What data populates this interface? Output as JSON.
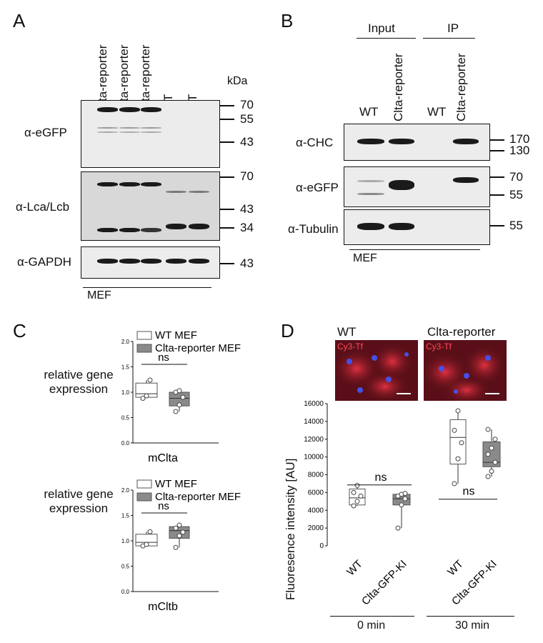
{
  "panels": {
    "A": "A",
    "B": "B",
    "C": "C",
    "D": "D"
  },
  "panelA": {
    "lanes": [
      "Clta-reporter",
      "Clta-reporter",
      "Clta-reporter",
      "WT",
      "WT"
    ],
    "kda": "kDa",
    "blots": [
      {
        "label": "α-eGFP",
        "markers": [
          "70",
          "55",
          "43"
        ]
      },
      {
        "label": "α-Lca/Lcb",
        "markers": [
          "70",
          "43",
          "34"
        ]
      },
      {
        "label": "α-GAPDH",
        "markers": [
          "43"
        ]
      }
    ],
    "cell": "MEF"
  },
  "panelB": {
    "groups": [
      "Input",
      "IP"
    ],
    "lanes": [
      "WT",
      "Clta-reporter",
      "WT",
      "Clta-reporter"
    ],
    "blots": [
      {
        "label": "α-CHC",
        "markers": [
          "170",
          "130"
        ]
      },
      {
        "label": "α-eGFP",
        "markers": [
          "70",
          "55"
        ]
      },
      {
        "label": "α-Tubulin",
        "markers": [
          "55"
        ]
      }
    ],
    "cell": "MEF"
  },
  "chart_data": [
    {
      "type": "box",
      "ylabel": "relative gene expression",
      "xlabel": "mClta",
      "ylim": [
        0,
        2.0
      ],
      "yticks": [
        "0.0",
        "0.5",
        "1.0",
        "1.5",
        "2.0"
      ],
      "legend": [
        "WT MEF",
        "Clta-reporter MEF"
      ],
      "significance": "ns",
      "series": [
        {
          "name": "WT MEF",
          "min": 0.88,
          "q1": 0.9,
          "median": 0.97,
          "q3": 1.18,
          "max": 1.24,
          "points": [
            0.88,
            0.93,
            1.24
          ]
        },
        {
          "name": "Clta-reporter MEF",
          "min": 0.62,
          "q1": 0.73,
          "median": 0.88,
          "q3": 1.0,
          "max": 1.03,
          "points": [
            0.62,
            0.75,
            0.9,
            1.0,
            1.03
          ]
        }
      ]
    },
    {
      "type": "box",
      "ylabel": "relative gene expression",
      "xlabel": "mCltb",
      "ylim": [
        0,
        2.0
      ],
      "yticks": [
        "0.0",
        "0.5",
        "1.0",
        "1.5",
        "2.0"
      ],
      "legend": [
        "WT MEF",
        "Clta-reporter MEF"
      ],
      "significance": "ns",
      "series": [
        {
          "name": "WT MEF",
          "min": 0.9,
          "q1": 0.9,
          "median": 0.97,
          "q3": 1.13,
          "max": 1.18,
          "points": [
            0.9,
            0.93,
            1.18
          ]
        },
        {
          "name": "Clta-reporter MEF",
          "min": 0.87,
          "q1": 1.05,
          "median": 1.2,
          "q3": 1.28,
          "max": 1.31,
          "points": [
            0.87,
            1.1,
            1.17,
            1.25,
            1.31
          ]
        }
      ]
    },
    {
      "type": "box",
      "ylabel": "Fluoresence intensity [AU]",
      "ylim": [
        0,
        16000
      ],
      "yticks": [
        "0",
        "2000",
        "4000",
        "6000",
        "8000",
        "10000",
        "12000",
        "14000",
        "16000"
      ],
      "categories": [
        "WT",
        "Clta-GFP-KI",
        "WT",
        "Clta-GFP-KI"
      ],
      "groups": [
        "0 min",
        "30 min"
      ],
      "significance": [
        "ns",
        "ns"
      ],
      "images": [
        {
          "title": "WT",
          "stain": "Cy3-Tf"
        },
        {
          "title": "Clta-reporter",
          "stain": "Cy3-Tf"
        }
      ],
      "series": [
        {
          "name": "WT 0 min",
          "min": 4500,
          "q1": 4600,
          "median": 5400,
          "q3": 6400,
          "max": 6800,
          "points": [
            4500,
            5000,
            5600,
            6000,
            6800
          ]
        },
        {
          "name": "Clta-GFP-KI 0 min",
          "min": 2000,
          "q1": 4600,
          "median": 5300,
          "q3": 5800,
          "max": 5900,
          "points": [
            2000,
            4600,
            5300,
            5600,
            5800,
            5900
          ]
        },
        {
          "name": "WT 30 min",
          "min": 7000,
          "q1": 9200,
          "median": 12200,
          "q3": 14200,
          "max": 15200,
          "points": [
            7000,
            9800,
            11600,
            13000,
            15200
          ]
        },
        {
          "name": "Clta-GFP-KI 30 min",
          "min": 7800,
          "q1": 8900,
          "median": 9400,
          "q3": 11700,
          "max": 13100,
          "points": [
            7800,
            8400,
            9400,
            10300,
            11000,
            12000,
            13100
          ]
        }
      ],
      "colors": {
        "WT": "#ffffff",
        "KI": "#8a8a8a"
      }
    }
  ]
}
